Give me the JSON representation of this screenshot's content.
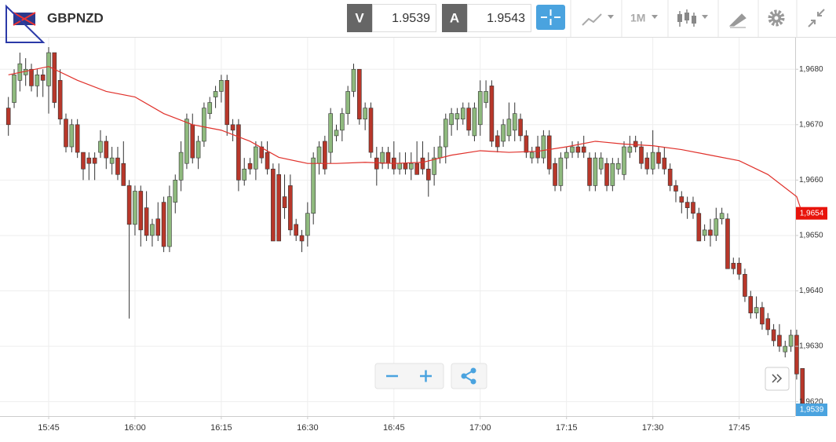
{
  "header": {
    "symbol": "GBPNZD",
    "bid_label": "V",
    "bid": "1.9539",
    "ask_label": "A",
    "ask": "1.9543",
    "timeframe": "1M"
  },
  "chart_data": {
    "type": "candlestick",
    "up_color": "#8fba7e",
    "down_color": "#b8372a",
    "wick_color": "#333",
    "grid": true,
    "ylim": [
      1.96174,
      1.96857
    ],
    "yticks": [
      {
        "value": 1.962,
        "label": "1,9620"
      },
      {
        "value": 1.963,
        "label": "1,9630"
      },
      {
        "value": 1.964,
        "label": "1,9640"
      },
      {
        "value": 1.965,
        "label": "1,9650"
      },
      {
        "value": 1.966,
        "label": "1,9660"
      },
      {
        "value": 1.967,
        "label": "1,9670"
      },
      {
        "value": 1.968,
        "label": "1,9680"
      }
    ],
    "xticks": [
      "15:45",
      "16:00",
      "16:15",
      "16:30",
      "16:45",
      "17:00",
      "17:15",
      "17:30",
      "17:45"
    ],
    "x": [
      "15:38",
      "15:39",
      "15:40",
      "15:41",
      "15:42",
      "15:43",
      "15:44",
      "15:45",
      "15:46",
      "15:47",
      "15:48",
      "15:49",
      "15:50",
      "15:51",
      "15:52",
      "15:53",
      "15:54",
      "15:55",
      "15:56",
      "15:57",
      "15:58",
      "15:59",
      "16:00",
      "16:01",
      "16:02",
      "16:03",
      "16:04",
      "16:05",
      "16:06",
      "16:07",
      "16:08",
      "16:09",
      "16:10",
      "16:11",
      "16:12",
      "16:13",
      "16:14",
      "16:15",
      "16:16",
      "16:17",
      "16:18",
      "16:19",
      "16:20",
      "16:21",
      "16:22",
      "16:23",
      "16:24",
      "16:25",
      "16:26",
      "16:27",
      "16:28",
      "16:29",
      "16:30",
      "16:31",
      "16:32",
      "16:33",
      "16:34",
      "16:35",
      "16:36",
      "16:37",
      "16:38",
      "16:39",
      "16:40",
      "16:41",
      "16:42",
      "16:43",
      "16:44",
      "16:45",
      "16:46",
      "16:47",
      "16:48",
      "16:49",
      "16:50",
      "16:51",
      "16:52",
      "16:53",
      "16:54",
      "16:55",
      "16:56",
      "16:57",
      "16:58",
      "16:59",
      "17:00",
      "17:01",
      "17:02",
      "17:03",
      "17:04",
      "17:05",
      "17:06",
      "17:07",
      "17:08",
      "17:09",
      "17:10",
      "17:11",
      "17:12",
      "17:13",
      "17:14",
      "17:15",
      "17:16",
      "17:17",
      "17:18",
      "17:19",
      "17:20",
      "17:21",
      "17:22",
      "17:23",
      "17:24",
      "17:25",
      "17:26",
      "17:27",
      "17:28",
      "17:29",
      "17:30",
      "17:31",
      "17:32",
      "17:33",
      "17:34",
      "17:35",
      "17:36",
      "17:37",
      "17:38",
      "17:39",
      "17:40",
      "17:41",
      "17:42",
      "17:43",
      "17:44",
      "17:45",
      "17:46",
      "17:47",
      "17:48",
      "17:49",
      "17:50",
      "17:51",
      "17:52",
      "17:53",
      "17:54",
      "17:55",
      "17:56"
    ],
    "ohlc": [
      [
        1.9673,
        1.9675,
        1.9668,
        1.967
      ],
      [
        1.9674,
        1.968,
        1.9673,
        1.9679
      ],
      [
        1.9678,
        1.9683,
        1.9676,
        1.9681
      ],
      [
        1.9679,
        1.9682,
        1.9677,
        1.968
      ],
      [
        1.968,
        1.9681,
        1.9676,
        1.9677
      ],
      [
        1.9677,
        1.968,
        1.9675,
        1.9679
      ],
      [
        1.9679,
        1.968,
        1.9675,
        1.9678
      ],
      [
        1.9677,
        1.9684,
        1.9672,
        1.9683
      ],
      [
        1.9683,
        1.9683,
        1.9673,
        1.9674
      ],
      [
        1.9678,
        1.968,
        1.967,
        1.9671
      ],
      [
        1.9671,
        1.9672,
        1.9665,
        1.9666
      ],
      [
        1.9666,
        1.9671,
        1.9665,
        1.967
      ],
      [
        1.967,
        1.9671,
        1.9664,
        1.9665
      ],
      [
        1.9665,
        1.9665,
        1.966,
        1.9662
      ],
      [
        1.9664,
        1.9665,
        1.966,
        1.9663
      ],
      [
        1.9664,
        1.9665,
        1.966,
        1.9663
      ],
      [
        1.9665,
        1.9669,
        1.9664,
        1.9667
      ],
      [
        1.9667,
        1.9668,
        1.9662,
        1.9664
      ],
      [
        1.9663,
        1.9666,
        1.9661,
        1.9664
      ],
      [
        1.9664,
        1.9666,
        1.966,
        1.9661
      ],
      [
        1.9663,
        1.9667,
        1.9659,
        1.9659
      ],
      [
        1.9659,
        1.966,
        1.9635,
        1.9652
      ],
      [
        1.9652,
        1.9659,
        1.965,
        1.9658
      ],
      [
        1.9658,
        1.9659,
        1.9648,
        1.9651
      ],
      [
        1.9655,
        1.9658,
        1.9649,
        1.965
      ],
      [
        1.965,
        1.9653,
        1.9648,
        1.9652
      ],
      [
        1.9653,
        1.9656,
        1.9649,
        1.965
      ],
      [
        1.9656,
        1.9657,
        1.9647,
        1.9648
      ],
      [
        1.9648,
        1.9659,
        1.9647,
        1.9657
      ],
      [
        1.9656,
        1.9661,
        1.9654,
        1.966
      ],
      [
        1.966,
        1.9667,
        1.9658,
        1.9665
      ],
      [
        1.9663,
        1.9672,
        1.9662,
        1.9671
      ],
      [
        1.967,
        1.9672,
        1.9663,
        1.9664
      ],
      [
        1.9664,
        1.9668,
        1.9662,
        1.9667
      ],
      [
        1.9667,
        1.9674,
        1.9666,
        1.9673
      ],
      [
        1.9672,
        1.9675,
        1.9671,
        1.9674
      ],
      [
        1.9675,
        1.9677,
        1.9673,
        1.9676
      ],
      [
        1.9676,
        1.9679,
        1.9674,
        1.9678
      ],
      [
        1.9678,
        1.9679,
        1.9668,
        1.967
      ],
      [
        1.967,
        1.9671,
        1.9667,
        1.9669
      ],
      [
        1.967,
        1.9671,
        1.9658,
        1.966
      ],
      [
        1.966,
        1.9664,
        1.9659,
        1.9662
      ],
      [
        1.9663,
        1.9664,
        1.9661,
        1.9662
      ],
      [
        1.9662,
        1.9667,
        1.966,
        1.9666
      ],
      [
        1.9666,
        1.9667,
        1.9663,
        1.9664
      ],
      [
        1.9665,
        1.9667,
        1.9661,
        1.9662
      ],
      [
        1.9662,
        1.9663,
        1.9649,
        1.9649
      ],
      [
        1.9661,
        1.9663,
        1.9649,
        1.9649
      ],
      [
        1.9657,
        1.9661,
        1.9653,
        1.9655
      ],
      [
        1.9659,
        1.9661,
        1.965,
        1.9651
      ],
      [
        1.9652,
        1.9653,
        1.9649,
        1.965
      ],
      [
        1.965,
        1.9651,
        1.9647,
        1.9649
      ],
      [
        1.965,
        1.9656,
        1.9648,
        1.9654
      ],
      [
        1.9654,
        1.9665,
        1.9652,
        1.9664
      ],
      [
        1.9663,
        1.9667,
        1.9661,
        1.9666
      ],
      [
        1.9667,
        1.9668,
        1.9661,
        1.9662
      ],
      [
        1.9665,
        1.9673,
        1.9663,
        1.9672
      ],
      [
        1.9668,
        1.967,
        1.9667,
        1.9669
      ],
      [
        1.9669,
        1.9673,
        1.9667,
        1.9672
      ],
      [
        1.9672,
        1.9677,
        1.967,
        1.9676
      ],
      [
        1.9676,
        1.9681,
        1.9675,
        1.968
      ],
      [
        1.968,
        1.968,
        1.967,
        1.9671
      ],
      [
        1.9671,
        1.9674,
        1.9669,
        1.9673
      ],
      [
        1.9673,
        1.9674,
        1.9664,
        1.9665
      ],
      [
        1.9664,
        1.9666,
        1.9659,
        1.9662
      ],
      [
        1.9663,
        1.9666,
        1.9662,
        1.9665
      ],
      [
        1.9665,
        1.9666,
        1.9662,
        1.9663
      ],
      [
        1.9664,
        1.9667,
        1.9661,
        1.9662
      ],
      [
        1.9662,
        1.9665,
        1.9661,
        1.9663
      ],
      [
        1.9663,
        1.9665,
        1.9661,
        1.9662
      ],
      [
        1.9662,
        1.9665,
        1.966,
        1.9663
      ],
      [
        1.9663,
        1.9667,
        1.9661,
        1.9661
      ],
      [
        1.9664,
        1.9667,
        1.9661,
        1.9662
      ],
      [
        1.9662,
        1.9665,
        1.9657,
        1.966
      ],
      [
        1.9661,
        1.9666,
        1.9659,
        1.9664
      ],
      [
        1.9664,
        1.9668,
        1.9663,
        1.9666
      ],
      [
        1.9666,
        1.9672,
        1.9663,
        1.9671
      ],
      [
        1.967,
        1.9673,
        1.9668,
        1.9672
      ],
      [
        1.9671,
        1.9673,
        1.9669,
        1.9672
      ],
      [
        1.9671,
        1.9674,
        1.967,
        1.9673
      ],
      [
        1.9673,
        1.9674,
        1.9668,
        1.9669
      ],
      [
        1.9668,
        1.9674,
        1.9667,
        1.9673
      ],
      [
        1.967,
        1.9678,
        1.9668,
        1.9676
      ],
      [
        1.9674,
        1.9678,
        1.9673,
        1.9676
      ],
      [
        1.9677,
        1.9678,
        1.9666,
        1.9667
      ],
      [
        1.9668,
        1.9669,
        1.9665,
        1.9666
      ],
      [
        1.9667,
        1.9671,
        1.9666,
        1.967
      ],
      [
        1.9668,
        1.9674,
        1.9667,
        1.9671
      ],
      [
        1.9669,
        1.9674,
        1.9667,
        1.9672
      ],
      [
        1.9671,
        1.9672,
        1.9667,
        1.9668
      ],
      [
        1.9668,
        1.9669,
        1.9664,
        1.9665
      ],
      [
        1.9664,
        1.9666,
        1.9663,
        1.9665
      ],
      [
        1.9666,
        1.9668,
        1.9663,
        1.9664
      ],
      [
        1.9664,
        1.9669,
        1.9663,
        1.9668
      ],
      [
        1.9668,
        1.9669,
        1.9661,
        1.9662
      ],
      [
        1.9663,
        1.9664,
        1.9658,
        1.9659
      ],
      [
        1.9659,
        1.9665,
        1.9658,
        1.9664
      ],
      [
        1.9664,
        1.9666,
        1.9662,
        1.9665
      ],
      [
        1.9665,
        1.9667,
        1.9664,
        1.9666
      ],
      [
        1.9666,
        1.9667,
        1.9664,
        1.9665
      ],
      [
        1.9666,
        1.9668,
        1.9664,
        1.9665
      ],
      [
        1.9664,
        1.9665,
        1.9658,
        1.9659
      ],
      [
        1.9659,
        1.9665,
        1.9658,
        1.9664
      ],
      [
        1.9662,
        1.9665,
        1.9661,
        1.9664
      ],
      [
        1.9663,
        1.9664,
        1.9658,
        1.9659
      ],
      [
        1.9659,
        1.9664,
        1.9658,
        1.9663
      ],
      [
        1.9662,
        1.9664,
        1.9661,
        1.9663
      ],
      [
        1.9661,
        1.9667,
        1.966,
        1.9666
      ],
      [
        1.9665,
        1.9668,
        1.9664,
        1.9666
      ],
      [
        1.9667,
        1.9668,
        1.9665,
        1.9666
      ],
      [
        1.9666,
        1.9667,
        1.9662,
        1.9663
      ],
      [
        1.9664,
        1.9665,
        1.9661,
        1.9662
      ],
      [
        1.9662,
        1.9669,
        1.9661,
        1.9665
      ],
      [
        1.9665,
        1.9666,
        1.9662,
        1.9663
      ],
      [
        1.9664,
        1.9666,
        1.9661,
        1.9662
      ],
      [
        1.9662,
        1.9663,
        1.9658,
        1.9659
      ],
      [
        1.9659,
        1.966,
        1.9656,
        1.9658
      ],
      [
        1.9657,
        1.9658,
        1.9654,
        1.9656
      ],
      [
        1.9656,
        1.9657,
        1.9653,
        1.9655
      ],
      [
        1.9656,
        1.9657,
        1.9653,
        1.9654
      ],
      [
        1.9654,
        1.9655,
        1.9649,
        1.9649
      ],
      [
        1.965,
        1.9652,
        1.9649,
        1.9651
      ],
      [
        1.9651,
        1.9653,
        1.9648,
        1.965
      ],
      [
        1.965,
        1.9655,
        1.9649,
        1.9653
      ],
      [
        1.9653,
        1.9655,
        1.9652,
        1.9654
      ],
      [
        1.9653,
        1.9654,
        1.9644,
        1.9644
      ],
      [
        1.9645,
        1.9646,
        1.9643,
        1.9644
      ],
      [
        1.9645,
        1.9646,
        1.9642,
        1.9643
      ],
      [
        1.9643,
        1.9644,
        1.9638,
        1.9639
      ],
      [
        1.9639,
        1.964,
        1.9635,
        1.9636
      ],
      [
        1.9636,
        1.9639,
        1.9635,
        1.9637
      ],
      [
        1.9637,
        1.9638,
        1.9633,
        1.9634
      ],
      [
        1.9635,
        1.9636,
        1.9632,
        1.9633
      ],
      [
        1.9633,
        1.9634,
        1.963,
        1.9631
      ],
      [
        1.9632,
        1.9634,
        1.9629,
        1.963
      ],
      [
        1.9629,
        1.9631,
        1.9628,
        1.963
      ],
      [
        1.963,
        1.9633,
        1.9629,
        1.9632
      ],
      [
        1.9632,
        1.9633,
        1.9624,
        1.9625
      ],
      [
        1.9626,
        1.9626,
        1.9619,
        1.9619
      ]
    ],
    "moving_average": {
      "color": "#e0302a",
      "x": [
        "15:38",
        "15:45",
        "15:50",
        "15:55",
        "16:00",
        "16:05",
        "16:10",
        "16:15",
        "16:20",
        "16:25",
        "16:30",
        "16:35",
        "16:40",
        "16:45",
        "16:50",
        "16:55",
        "17:00",
        "17:05",
        "17:10",
        "17:15",
        "17:20",
        "17:25",
        "17:30",
        "17:35",
        "17:40",
        "17:45",
        "17:50",
        "17:55",
        "17:56"
      ],
      "values": [
        1.9679,
        1.96805,
        1.9678,
        1.9676,
        1.9675,
        1.9672,
        1.967,
        1.9669,
        1.9667,
        1.96641,
        1.9663,
        1.9663,
        1.96632,
        1.9663,
        1.96632,
        1.96645,
        1.96653,
        1.9665,
        1.96652,
        1.9666,
        1.9667,
        1.96665,
        1.96662,
        1.96655,
        1.96645,
        1.96635,
        1.9661,
        1.9657,
        1.96539
      ]
    },
    "price_tags": [
      {
        "value": 1.9654,
        "label": "1,9654",
        "color": "#e8140c"
      },
      {
        "label": "1,9539",
        "color": "#4aa3df"
      }
    ]
  }
}
